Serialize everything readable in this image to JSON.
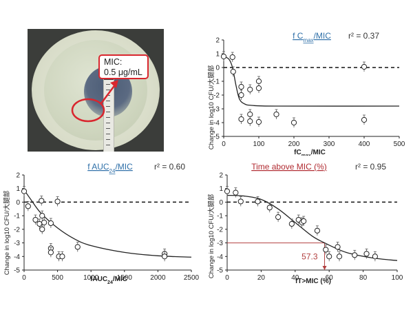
{
  "photo": {
    "annotation_label": "MIC:",
    "annotation_value": "0.5 μg/mL",
    "strip_mark": "E"
  },
  "colors": {
    "annotation_red": "#d9262e",
    "title_blue": "#2e6fa8",
    "title_red": "#b02a30",
    "cutoff_line_red": "#b24040",
    "curve": "#222222"
  },
  "chart_data": [
    {
      "type": "scatter",
      "title": "f C",
      "title_sub": "max",
      "title_tail": "/MIC",
      "r2_label": "r² = 0.37",
      "xlabel": "fC",
      "xlabel_sub": "max",
      "xlabel_tail": "/MIC",
      "ylabel": "Change in log10 CFU/大腿部",
      "xlim": [
        0,
        500
      ],
      "ylim": [
        -5,
        2
      ],
      "xticks": [
        0,
        100,
        200,
        300,
        400,
        500
      ],
      "yticks": [
        2,
        1,
        0,
        -1,
        -2,
        -3,
        -4,
        -5
      ],
      "reference_line_y": 0,
      "points": [
        {
          "x": 0,
          "y": 0.8
        },
        {
          "x": 25,
          "y": 0.75
        },
        {
          "x": 27,
          "y": -0.3
        },
        {
          "x": 50,
          "y": -1.4
        },
        {
          "x": 50,
          "y": -2.0
        },
        {
          "x": 50,
          "y": -3.75
        },
        {
          "x": 75,
          "y": -1.6
        },
        {
          "x": 75,
          "y": -3.4
        },
        {
          "x": 75,
          "y": -3.9
        },
        {
          "x": 100,
          "y": -1.0
        },
        {
          "x": 100,
          "y": -1.5
        },
        {
          "x": 100,
          "y": -3.95
        },
        {
          "x": 150,
          "y": -3.4
        },
        {
          "x": 200,
          "y": -4.0
        },
        {
          "x": 400,
          "y": 0.05
        },
        {
          "x": 400,
          "y": -3.8
        }
      ],
      "fit_curve": [
        {
          "x": 0,
          "y": 0.8
        },
        {
          "x": 15,
          "y": 0.6
        },
        {
          "x": 25,
          "y": 0.0
        },
        {
          "x": 35,
          "y": -1.3
        },
        {
          "x": 45,
          "y": -2.3
        },
        {
          "x": 60,
          "y": -2.65
        },
        {
          "x": 80,
          "y": -2.75
        },
        {
          "x": 150,
          "y": -2.8
        },
        {
          "x": 500,
          "y": -2.8
        }
      ]
    },
    {
      "type": "scatter",
      "title": "f AUC",
      "title_sub": "24",
      "title_tail": "/MIC",
      "r2_label": "r² = 0.60",
      "xlabel": "fAUC",
      "xlabel_sub": "24",
      "xlabel_tail": "/MIC",
      "ylabel": "Change in log10 CFU/大腿部",
      "xlim": [
        0,
        2500
      ],
      "ylim": [
        -5,
        2
      ],
      "xticks": [
        0,
        500,
        1000,
        1500,
        2000,
        2500
      ],
      "yticks": [
        2,
        1,
        0,
        -1,
        -2,
        -3,
        -4,
        -5
      ],
      "reference_line_y": 0,
      "points": [
        {
          "x": 0,
          "y": 0.8
        },
        {
          "x": 60,
          "y": -0.3
        },
        {
          "x": 170,
          "y": -1.3
        },
        {
          "x": 230,
          "y": -1.6
        },
        {
          "x": 260,
          "y": 0.1
        },
        {
          "x": 270,
          "y": -1.0
        },
        {
          "x": 270,
          "y": -2.0
        },
        {
          "x": 300,
          "y": -1.5
        },
        {
          "x": 400,
          "y": -1.55
        },
        {
          "x": 400,
          "y": -3.4
        },
        {
          "x": 400,
          "y": -3.7
        },
        {
          "x": 500,
          "y": 0.05
        },
        {
          "x": 520,
          "y": -4.0
        },
        {
          "x": 570,
          "y": -4.0
        },
        {
          "x": 800,
          "y": -3.3
        },
        {
          "x": 2100,
          "y": -3.8
        },
        {
          "x": 2100,
          "y": -4.0
        }
      ],
      "fit_curve": [
        {
          "x": 0,
          "y": 0.9
        },
        {
          "x": 100,
          "y": 0.2
        },
        {
          "x": 250,
          "y": -0.8
        },
        {
          "x": 500,
          "y": -1.9
        },
        {
          "x": 750,
          "y": -2.7
        },
        {
          "x": 1000,
          "y": -3.2
        },
        {
          "x": 1500,
          "y": -3.7
        },
        {
          "x": 2000,
          "y": -3.95
        },
        {
          "x": 2500,
          "y": -4.05
        }
      ]
    },
    {
      "type": "scatter",
      "title": "Time above MIC (%)",
      "title_sub": "",
      "title_tail": "",
      "r2_label": "r² = 0.95",
      "xlabel": "fT>MIC (%)",
      "xlabel_sub": "",
      "xlabel_tail": "",
      "ylabel": "Change in log10 CFU/大腿部",
      "xlim": [
        0,
        100
      ],
      "ylim": [
        -5,
        2
      ],
      "xticks": [
        0,
        20,
        40,
        60,
        80,
        100
      ],
      "yticks": [
        2,
        1,
        0,
        -1,
        -2,
        -3,
        -4,
        -5
      ],
      "reference_line_y": 0,
      "cutoff_x": 57.3,
      "cutoff_y": -3,
      "cutoff_label": "57.3",
      "points": [
        {
          "x": 0,
          "y": 0.8
        },
        {
          "x": 5,
          "y": 0.7
        },
        {
          "x": 8,
          "y": 0.05
        },
        {
          "x": 18,
          "y": 0.05
        },
        {
          "x": 25,
          "y": -0.4
        },
        {
          "x": 30,
          "y": -1.1
        },
        {
          "x": 38,
          "y": -1.6
        },
        {
          "x": 42,
          "y": -1.3
        },
        {
          "x": 44,
          "y": -1.5
        },
        {
          "x": 45,
          "y": -1.4
        },
        {
          "x": 53,
          "y": -2.1
        },
        {
          "x": 58,
          "y": -3.5
        },
        {
          "x": 60,
          "y": -4.0
        },
        {
          "x": 65,
          "y": -3.3
        },
        {
          "x": 66,
          "y": -4.0
        },
        {
          "x": 75,
          "y": -3.9
        },
        {
          "x": 82,
          "y": -3.8
        },
        {
          "x": 87,
          "y": -4.0
        }
      ],
      "fit_curve": [
        {
          "x": 0,
          "y": 0.5
        },
        {
          "x": 10,
          "y": 0.45
        },
        {
          "x": 20,
          "y": 0.2
        },
        {
          "x": 30,
          "y": -0.5
        },
        {
          "x": 40,
          "y": -1.5
        },
        {
          "x": 50,
          "y": -2.5
        },
        {
          "x": 57.3,
          "y": -3.0
        },
        {
          "x": 70,
          "y": -3.7
        },
        {
          "x": 85,
          "y": -4.1
        },
        {
          "x": 100,
          "y": -4.3
        }
      ]
    }
  ]
}
